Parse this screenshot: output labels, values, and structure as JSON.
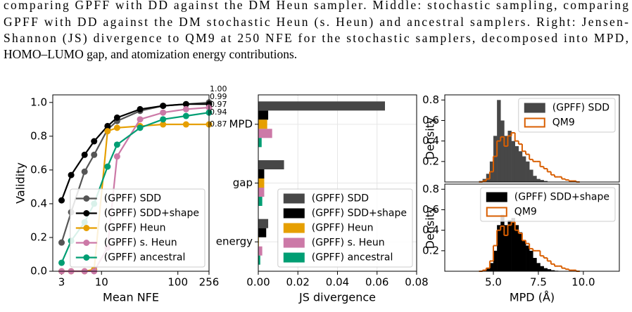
{
  "caption_lines": [
    "comparing GPFF with DD against the DM Heun sampler. Middle: stochastic sampling, comparing",
    "GPFF with DD against the DM stochastic Heun (s. Heun) and ancestral samplers. Right: Jensen-",
    "Shannon (JS) divergence to QM9 at 250 NFE for the stochastic samplers, decomposed into MPD,",
    "HOMO–LUMO gap, and atomization energy contributions."
  ],
  "chart_data": [
    {
      "type": "line",
      "xscale": "log",
      "xlabel": "Mean NFE",
      "ylabel": "Validity",
      "x": [
        3,
        4,
        6,
        8,
        12,
        16,
        32,
        64,
        128,
        256
      ],
      "xlim": [
        2.3,
        256
      ],
      "xticks": [
        3,
        10,
        100,
        256
      ],
      "ylim": [
        0,
        1.045
      ],
      "yticks": [
        {
          "value": 0,
          "label": "0.0"
        },
        {
          "value": 0.2,
          "label": "0.2"
        },
        {
          "value": 0.4,
          "label": "0.4"
        },
        {
          "value": 0.6,
          "label": "0.6"
        },
        {
          "value": 0.8,
          "label": "0.8"
        },
        {
          "value": 1.0,
          "label": "1.0"
        }
      ],
      "legend": "lower right",
      "series": [
        {
          "name": "(GPFF) SDD",
          "color": "#555555",
          "values": [
            0.17,
            0.35,
            0.59,
            0.69,
            0.84,
            0.89,
            0.95,
            0.98,
            0.99,
            1.0
          ],
          "value_labels": [
            null,
            null,
            null,
            null,
            null,
            null,
            null,
            null,
            null,
            "1.00"
          ]
        },
        {
          "name": "(GPFF) SDD+shape",
          "color": "#000000",
          "values": [
            0.42,
            0.57,
            0.69,
            0.77,
            0.86,
            0.91,
            0.96,
            0.98,
            0.99,
            0.99
          ],
          "value_labels": [
            null,
            null,
            null,
            null,
            null,
            null,
            null,
            null,
            null,
            "0.99"
          ]
        },
        {
          "name": "(GPFF) Heun",
          "color": "#e69f00",
          "values": [
            0,
            0,
            0,
            0.01,
            0.83,
            0.85,
            0.86,
            0.87,
            0.87,
            0.87
          ],
          "value_labels": [
            null,
            null,
            null,
            null,
            null,
            null,
            null,
            null,
            null,
            "0.87"
          ]
        },
        {
          "name": "(GPFF) s. Heun",
          "color": "#cc79a7",
          "values": [
            0,
            0,
            0,
            0,
            0.14,
            0.68,
            0.9,
            0.94,
            0.96,
            0.97
          ],
          "value_labels": [
            null,
            null,
            null,
            null,
            null,
            null,
            null,
            null,
            null,
            "0.97"
          ]
        },
        {
          "name": "(GPFF) ancestral",
          "color": "#009e73",
          "values": [
            0.05,
            0.18,
            0.29,
            0.4,
            0.62,
            0.75,
            0.85,
            0.9,
            0.92,
            0.94
          ],
          "value_labels": [
            null,
            null,
            null,
            null,
            null,
            null,
            null,
            null,
            null,
            "0.94"
          ]
        }
      ]
    },
    {
      "type": "barh",
      "xlabel": "JS divergence",
      "grid": true,
      "categories": [
        "MPD",
        "gap",
        "energy"
      ],
      "xlim": [
        0,
        0.08
      ],
      "xticks": [
        {
          "value": 0,
          "label": "0.00"
        },
        {
          "value": 0.02,
          "label": "0.02"
        },
        {
          "value": 0.04,
          "label": "0.04"
        },
        {
          "value": 0.06,
          "label": "0.06"
        },
        {
          "value": 0.08,
          "label": "0.08"
        }
      ],
      "legend": "lower right",
      "series": [
        {
          "name": "(GPFF) SDD",
          "color": "#474747",
          "values": [
            0.064,
            0.013,
            0.005
          ]
        },
        {
          "name": "(GPFF) SDD+shape",
          "color": "#000000",
          "values": [
            0.005,
            0.003,
            0.004
          ]
        },
        {
          "name": "(GPFF) Heun",
          "color": "#e69f00",
          "values": [
            0.0045,
            0.003,
            0.0003
          ]
        },
        {
          "name": "(GPFF) s. Heun",
          "color": "#cc79a7",
          "values": [
            0.007,
            0.003,
            0.002
          ]
        },
        {
          "name": "(GPFF) ancestral",
          "color": "#009e73",
          "values": [
            0.0017,
            0.002,
            0.001
          ]
        }
      ]
    },
    {
      "type": "histogram",
      "ylabel": "Density",
      "legend": "upper right",
      "bins": [
        4.2,
        4.4,
        4.6,
        4.8,
        5.0,
        5.2,
        5.4,
        5.6,
        5.8,
        6.0,
        6.2,
        6.4,
        6.6,
        6.8,
        7.0,
        7.2,
        7.4,
        7.6,
        7.8,
        8.0,
        8.2,
        8.4,
        8.6,
        8.8,
        9.0,
        9.2,
        9.4,
        9.6,
        9.8
      ],
      "xlim": [
        2.3,
        12
      ],
      "ylim": [
        0,
        0.85
      ],
      "yticks": [
        0.2,
        0.4,
        0.6,
        0.8
      ],
      "series": [
        {
          "name": "(GPFF) SDD",
          "color": "#474747",
          "histtype": "stepfilled",
          "values": [
            0.01,
            0.03,
            0.08,
            0.2,
            0.45,
            0.8,
            0.6,
            0.45,
            0.5,
            0.4,
            0.35,
            0.3,
            0.25,
            0.2,
            0.12,
            0.06,
            0.03,
            0.02,
            0.01,
            0,
            0,
            0,
            0,
            0,
            0,
            0,
            0,
            0
          ]
        },
        {
          "name": "QM9",
          "color": "#d95f02",
          "histtype": "step",
          "values": [
            0,
            0.01,
            0.03,
            0.1,
            0.25,
            0.4,
            0.44,
            0.35,
            0.45,
            0.48,
            0.4,
            0.37,
            0.3,
            0.27,
            0.22,
            0.2,
            0.2,
            0.15,
            0.13,
            0.1,
            0.07,
            0.05,
            0.05,
            0.03,
            0.02,
            0.01,
            0.01,
            0
          ]
        }
      ]
    },
    {
      "type": "histogram",
      "ylabel": "Density",
      "xlabel": "MPD (Å)",
      "legend": "upper right",
      "bins": [
        4.2,
        4.4,
        4.6,
        4.8,
        5.0,
        5.2,
        5.4,
        5.6,
        5.8,
        6.0,
        6.2,
        6.4,
        6.6,
        6.8,
        7.0,
        7.2,
        7.4,
        7.6,
        7.8,
        8.0,
        8.2,
        8.4,
        8.6,
        8.8,
        9.0,
        9.2,
        9.4,
        9.6,
        9.8
      ],
      "xlim": [
        2.3,
        12
      ],
      "xticks": [
        {
          "value": 5,
          "label": "5.0"
        },
        7.5,
        {
          "value": 10,
          "label": "10.0"
        }
      ],
      "ylim": [
        0,
        0.85
      ],
      "yticks": [
        0.2,
        0.4,
        0.6,
        0.8
      ],
      "series": [
        {
          "name": "(GPFF) SDD+shape",
          "color": "#000000",
          "histtype": "stepfilled",
          "values": [
            0,
            0.01,
            0.03,
            0.08,
            0.2,
            0.45,
            0.55,
            0.45,
            0.5,
            0.52,
            0.45,
            0.38,
            0.3,
            0.25,
            0.2,
            0.13,
            0.08,
            0.05,
            0.03,
            0.02,
            0.01,
            0.005,
            0,
            0,
            0,
            0,
            0,
            0
          ]
        },
        {
          "name": "QM9",
          "color": "#d95f02",
          "histtype": "step",
          "values": [
            0,
            0.01,
            0.03,
            0.1,
            0.25,
            0.4,
            0.44,
            0.35,
            0.45,
            0.48,
            0.4,
            0.37,
            0.3,
            0.27,
            0.22,
            0.2,
            0.2,
            0.15,
            0.13,
            0.1,
            0.07,
            0.05,
            0.05,
            0.03,
            0.02,
            0.01,
            0.01,
            0
          ]
        }
      ]
    }
  ]
}
